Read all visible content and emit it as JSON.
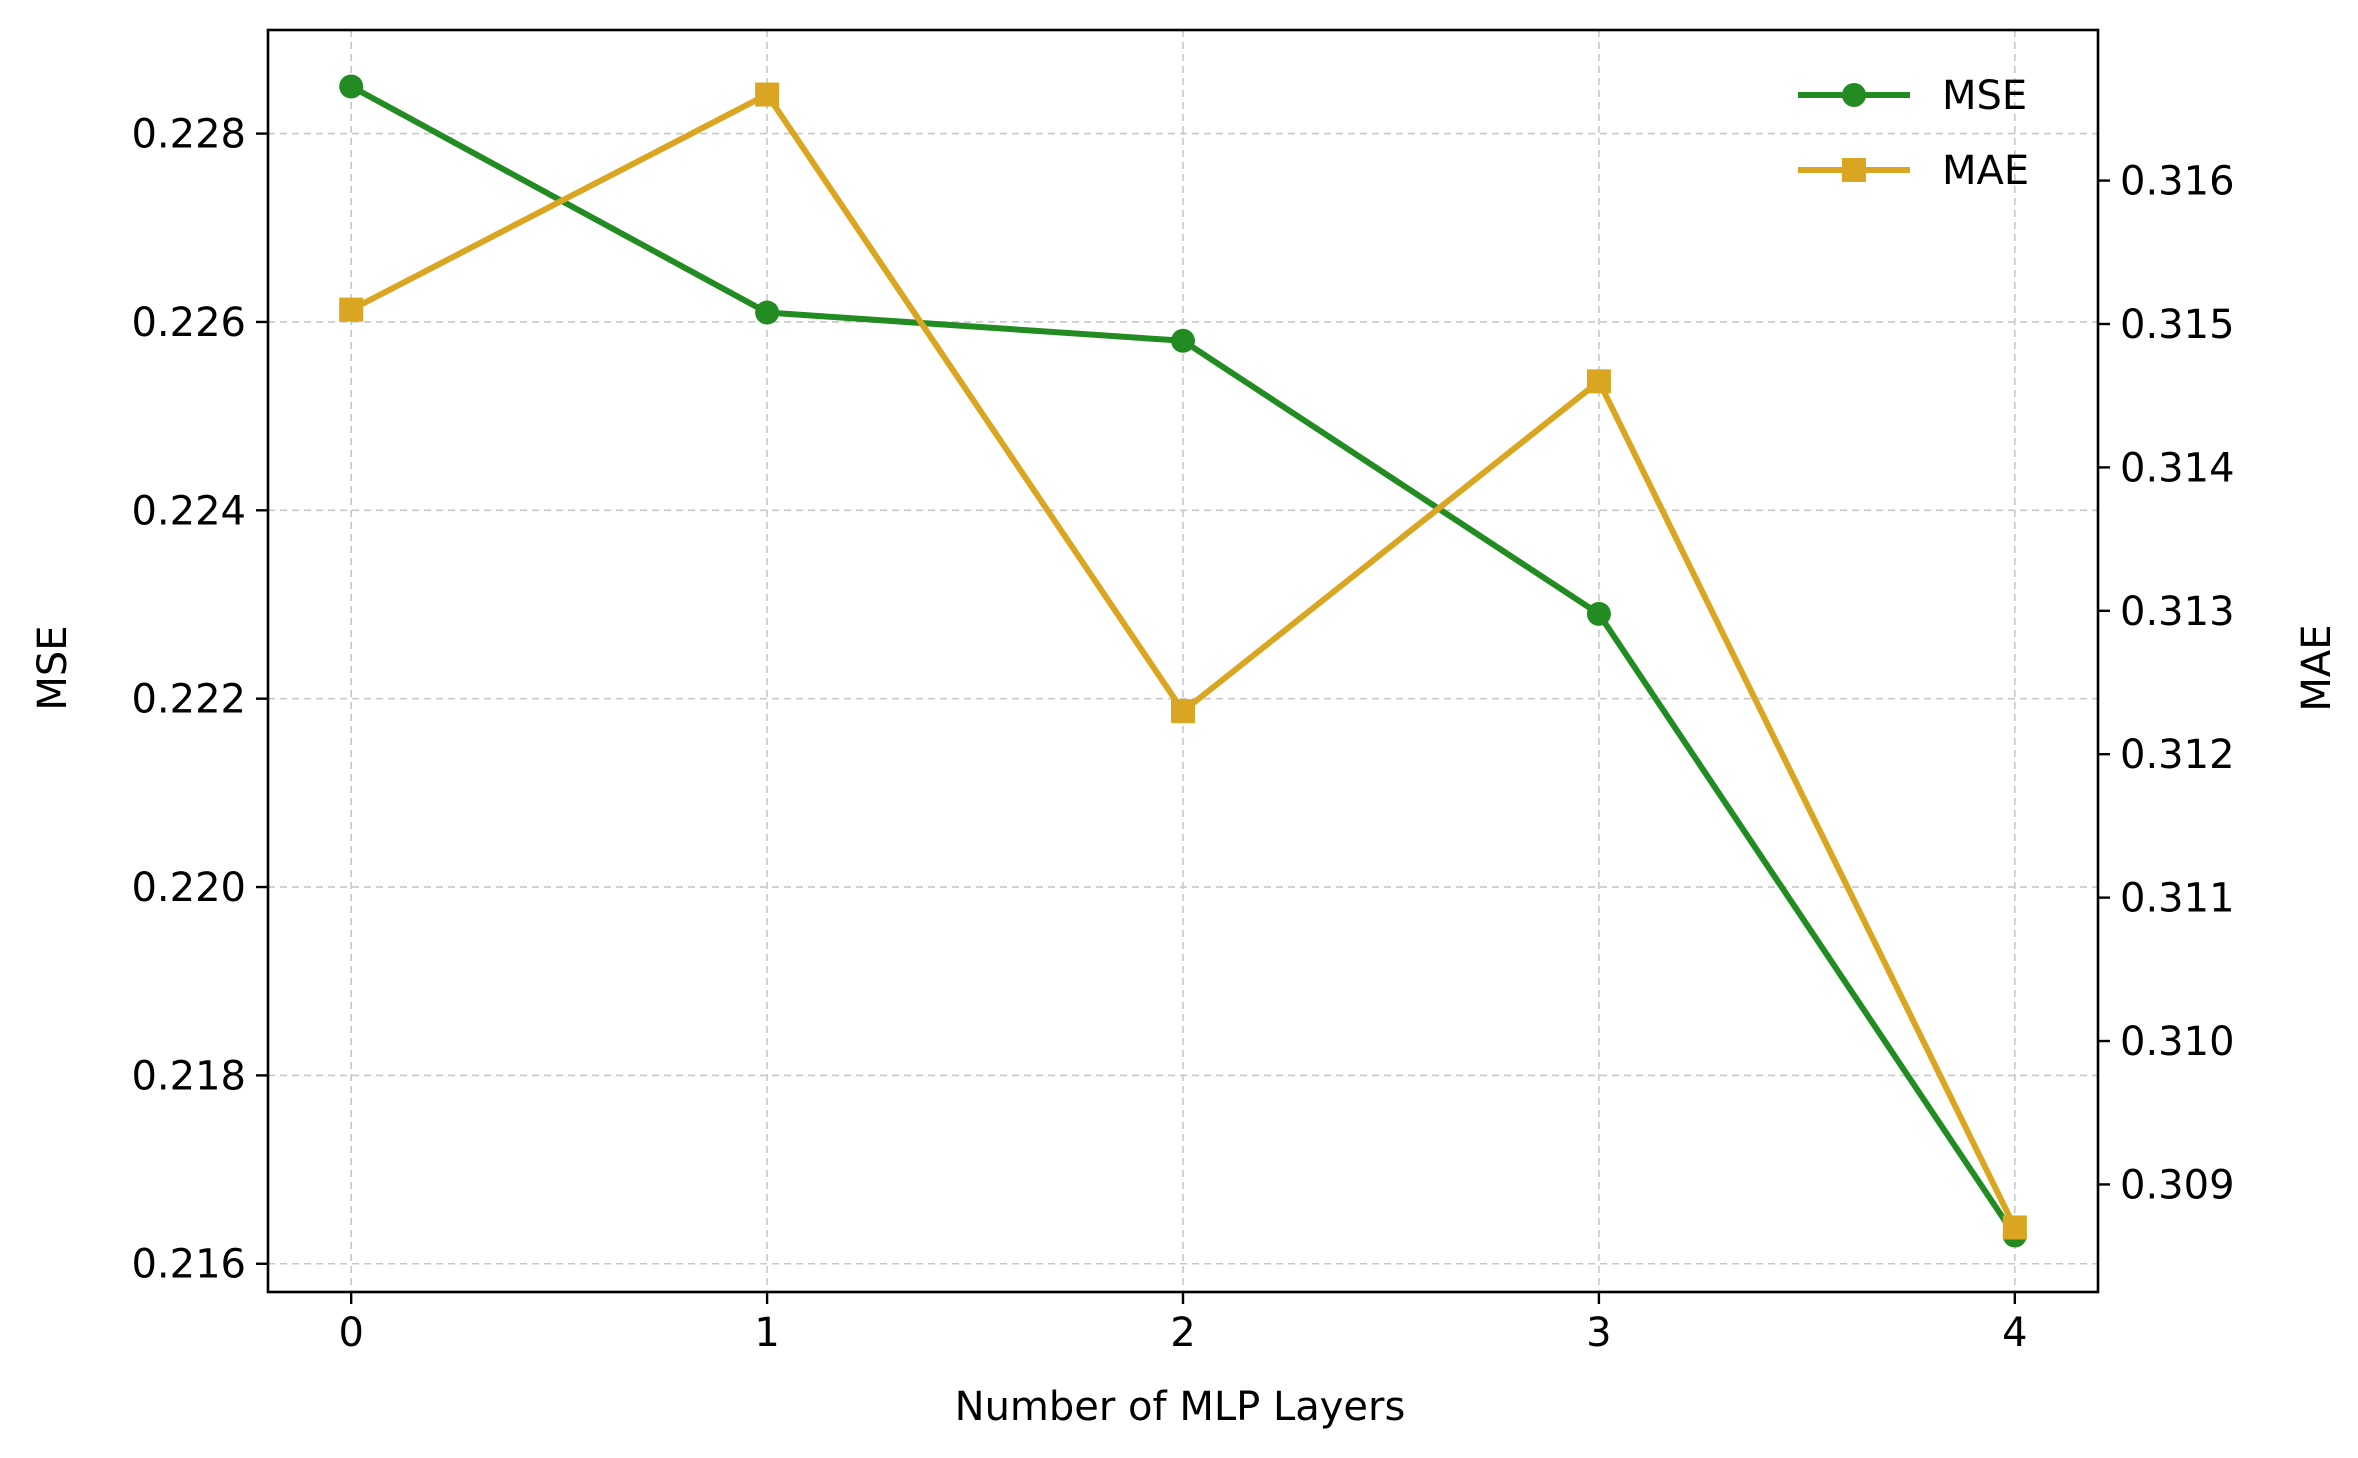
{
  "chart_data": {
    "type": "line",
    "title": "",
    "xlabel": "Number of MLP Layers",
    "ylabel": "MSE",
    "y2label": "MAE",
    "x": [
      0,
      1,
      2,
      3,
      4
    ],
    "xticks": [
      "0",
      "1",
      "2",
      "3",
      "4"
    ],
    "xlim": [
      -0.2,
      4.2
    ],
    "ylim": [
      0.2157,
      0.2291
    ],
    "y2lim": [
      0.30825,
      0.31705
    ],
    "yticks": [
      "0.216",
      "0.218",
      "0.220",
      "0.222",
      "0.224",
      "0.226",
      "0.228"
    ],
    "y2ticks": [
      "0.309",
      "0.310",
      "0.311",
      "0.312",
      "0.313",
      "0.314",
      "0.315",
      "0.316"
    ],
    "grid": true,
    "legend_position": "top-right",
    "series": [
      {
        "name": "MSE",
        "axis": "left",
        "color": "#228B22",
        "marker": "circle",
        "values": [
          0.2285,
          0.2261,
          0.2258,
          0.2229,
          0.2163
        ]
      },
      {
        "name": "MAE",
        "axis": "right",
        "color": "#DAA520",
        "marker": "square",
        "values": [
          0.3151,
          0.3166,
          0.3123,
          0.3146,
          0.3087
        ]
      }
    ]
  }
}
